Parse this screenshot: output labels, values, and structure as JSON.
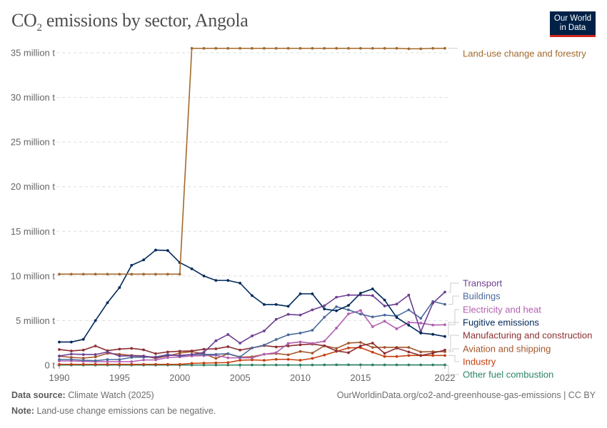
{
  "header": {
    "title_main": "CO",
    "title_sub": "2",
    "title_rest": " emissions by sector, Angola",
    "logo_line1": "Our World",
    "logo_line2": "in Data"
  },
  "footer": {
    "source_label": "Data source:",
    "source_value": "Climate Watch (2025)",
    "url_license": "OurWorldinData.org/co2-and-greenhouse-gas-emissions | CC BY",
    "note_label": "Note:",
    "note_value": "Land-use change emissions can be negative."
  },
  "chart_data": {
    "type": "line",
    "title": "CO₂ emissions by sector, Angola",
    "ylim": [
      0,
      35000000
    ],
    "y_ticks": [
      0,
      5000000,
      10000000,
      15000000,
      20000000,
      25000000,
      30000000,
      35000000
    ],
    "y_tick_labels": [
      "0 t",
      "5 million t",
      "10 million t",
      "15 million t",
      "20 million t",
      "25 million t",
      "30 million t",
      "35 million t"
    ],
    "x_ticks": [
      1990,
      1995,
      2000,
      2005,
      2010,
      2015,
      2022
    ],
    "x_tick_labels": [
      "1990",
      "1995",
      "2000",
      "2005",
      "2010",
      "2015",
      "2022"
    ],
    "grid": "horizontal dashed",
    "legend": "right (line-end labels)",
    "unit": "million t",
    "x": [
      1990,
      1991,
      1992,
      1993,
      1994,
      1995,
      1996,
      1997,
      1998,
      1999,
      2000,
      2001,
      2002,
      2003,
      2004,
      2005,
      2006,
      2007,
      2008,
      2009,
      2010,
      2011,
      2012,
      2013,
      2014,
      2015,
      2016,
      2017,
      2018,
      2019,
      2020,
      2021,
      2022
    ],
    "series": [
      {
        "name": "Land-use change and forestry",
        "color": "#a2692c",
        "values": [
          10.2,
          10.2,
          10.2,
          10.2,
          10.2,
          10.2,
          10.2,
          10.2,
          10.2,
          10.2,
          10.2,
          35.5,
          35.5,
          35.5,
          35.5,
          35.5,
          35.5,
          35.5,
          35.5,
          35.5,
          35.5,
          35.5,
          35.5,
          35.5,
          35.5,
          35.5,
          35.5,
          35.5,
          35.5,
          35.45,
          35.45,
          35.5,
          35.5
        ]
      },
      {
        "name": "Transport",
        "color": "#6d3e91",
        "values": [
          1.04,
          1.25,
          1.2,
          1.2,
          1.49,
          1.04,
          1.04,
          1.02,
          0.88,
          1.1,
          1.1,
          1.2,
          1.44,
          2.74,
          3.44,
          2.48,
          3.28,
          3.84,
          5.14,
          5.7,
          5.62,
          6.2,
          6.66,
          7.62,
          7.86,
          7.86,
          7.8,
          6.63,
          6.85,
          7.86,
          3.76,
          6.95,
          8.2
        ]
      },
      {
        "name": "Buildings",
        "color": "#4c6a9c",
        "values": [
          0.64,
          0.64,
          0.56,
          0.51,
          0.64,
          0.64,
          0.88,
          0.9,
          0.93,
          1.2,
          1.04,
          1.2,
          1.2,
          1.22,
          1.3,
          0.93,
          1.94,
          2.26,
          2.88,
          3.41,
          3.6,
          3.92,
          5.38,
          6.55,
          6.2,
          5.73,
          5.41,
          5.62,
          5.5,
          6.2,
          5.25,
          7.14,
          6.82
        ]
      },
      {
        "name": "Electricity and heat",
        "color": "#b35fb2",
        "values": [
          0.48,
          0.48,
          0.43,
          0.4,
          0.4,
          0.4,
          0.4,
          0.59,
          0.59,
          0.86,
          0.93,
          1.04,
          1.07,
          1.12,
          0.83,
          0.83,
          0.83,
          1.23,
          1.41,
          2.45,
          2.61,
          2.45,
          2.69,
          4.16,
          5.75,
          6.13,
          4.32,
          4.93,
          4.08,
          4.8,
          4.72,
          4.5,
          4.53
        ]
      },
      {
        "name": "Fugitive emissions",
        "color": "#00295b",
        "values": [
          2.6,
          2.6,
          2.9,
          5.0,
          7.0,
          8.7,
          11.2,
          11.8,
          12.9,
          12.85,
          11.5,
          10.8,
          10.0,
          9.5,
          9.5,
          9.2,
          7.8,
          6.8,
          6.8,
          6.6,
          8.0,
          8.0,
          6.3,
          6.1,
          6.7,
          8.07,
          8.55,
          7.3,
          5.35,
          4.48,
          3.6,
          3.46,
          3.22
        ]
      },
      {
        "name": "Manufacturing and construction",
        "color": "#8c2e32",
        "values": [
          1.76,
          1.6,
          1.7,
          2.16,
          1.63,
          1.81,
          1.89,
          1.73,
          1.3,
          1.49,
          1.57,
          1.6,
          1.79,
          1.84,
          2.08,
          1.7,
          1.94,
          2.2,
          2.05,
          2.16,
          2.29,
          2.37,
          2.18,
          1.6,
          1.41,
          2.16,
          2.48,
          1.33,
          1.92,
          1.49,
          1.09,
          1.36,
          1.7
        ]
      },
      {
        "name": "Aviation and shipping",
        "color": "#a4562c",
        "values": [
          1.01,
          0.88,
          0.8,
          0.93,
          1.33,
          1.23,
          1.1,
          1.04,
          0.77,
          1.04,
          1.36,
          1.52,
          1.28,
          0.77,
          1.28,
          0.9,
          0.95,
          1.23,
          1.31,
          1.17,
          1.55,
          1.36,
          2.18,
          1.89,
          2.48,
          2.56,
          2.0,
          2.0,
          2.0,
          2.0,
          1.49,
          1.52,
          1.52
        ]
      },
      {
        "name": "Industry",
        "color": "#c4400f",
        "values": [
          0.1,
          0.1,
          0.1,
          0.1,
          0.1,
          0.1,
          0.1,
          0.1,
          0.1,
          0.1,
          0.1,
          0.21,
          0.24,
          0.27,
          0.3,
          0.56,
          0.6,
          0.55,
          0.66,
          0.66,
          0.56,
          0.77,
          1.14,
          1.55,
          1.94,
          1.97,
          1.46,
          0.98,
          0.98,
          1.09,
          1.09,
          1.09,
          1.09
        ]
      },
      {
        "name": "Other fuel combustion",
        "color": "#2c8465",
        "values": [
          0.02,
          0.02,
          0.02,
          0.02,
          0.02,
          0.02,
          0.02,
          0.02,
          0.02,
          0.02,
          0.02,
          0.02,
          0.02,
          0.02,
          0.02,
          0.03,
          0.03,
          0.03,
          0.03,
          0.03,
          0.03,
          0.03,
          0.04,
          0.05,
          0.05,
          0.05,
          0.04,
          0.04,
          0.04,
          0.04,
          0.04,
          0.04,
          0.04
        ]
      }
    ]
  }
}
